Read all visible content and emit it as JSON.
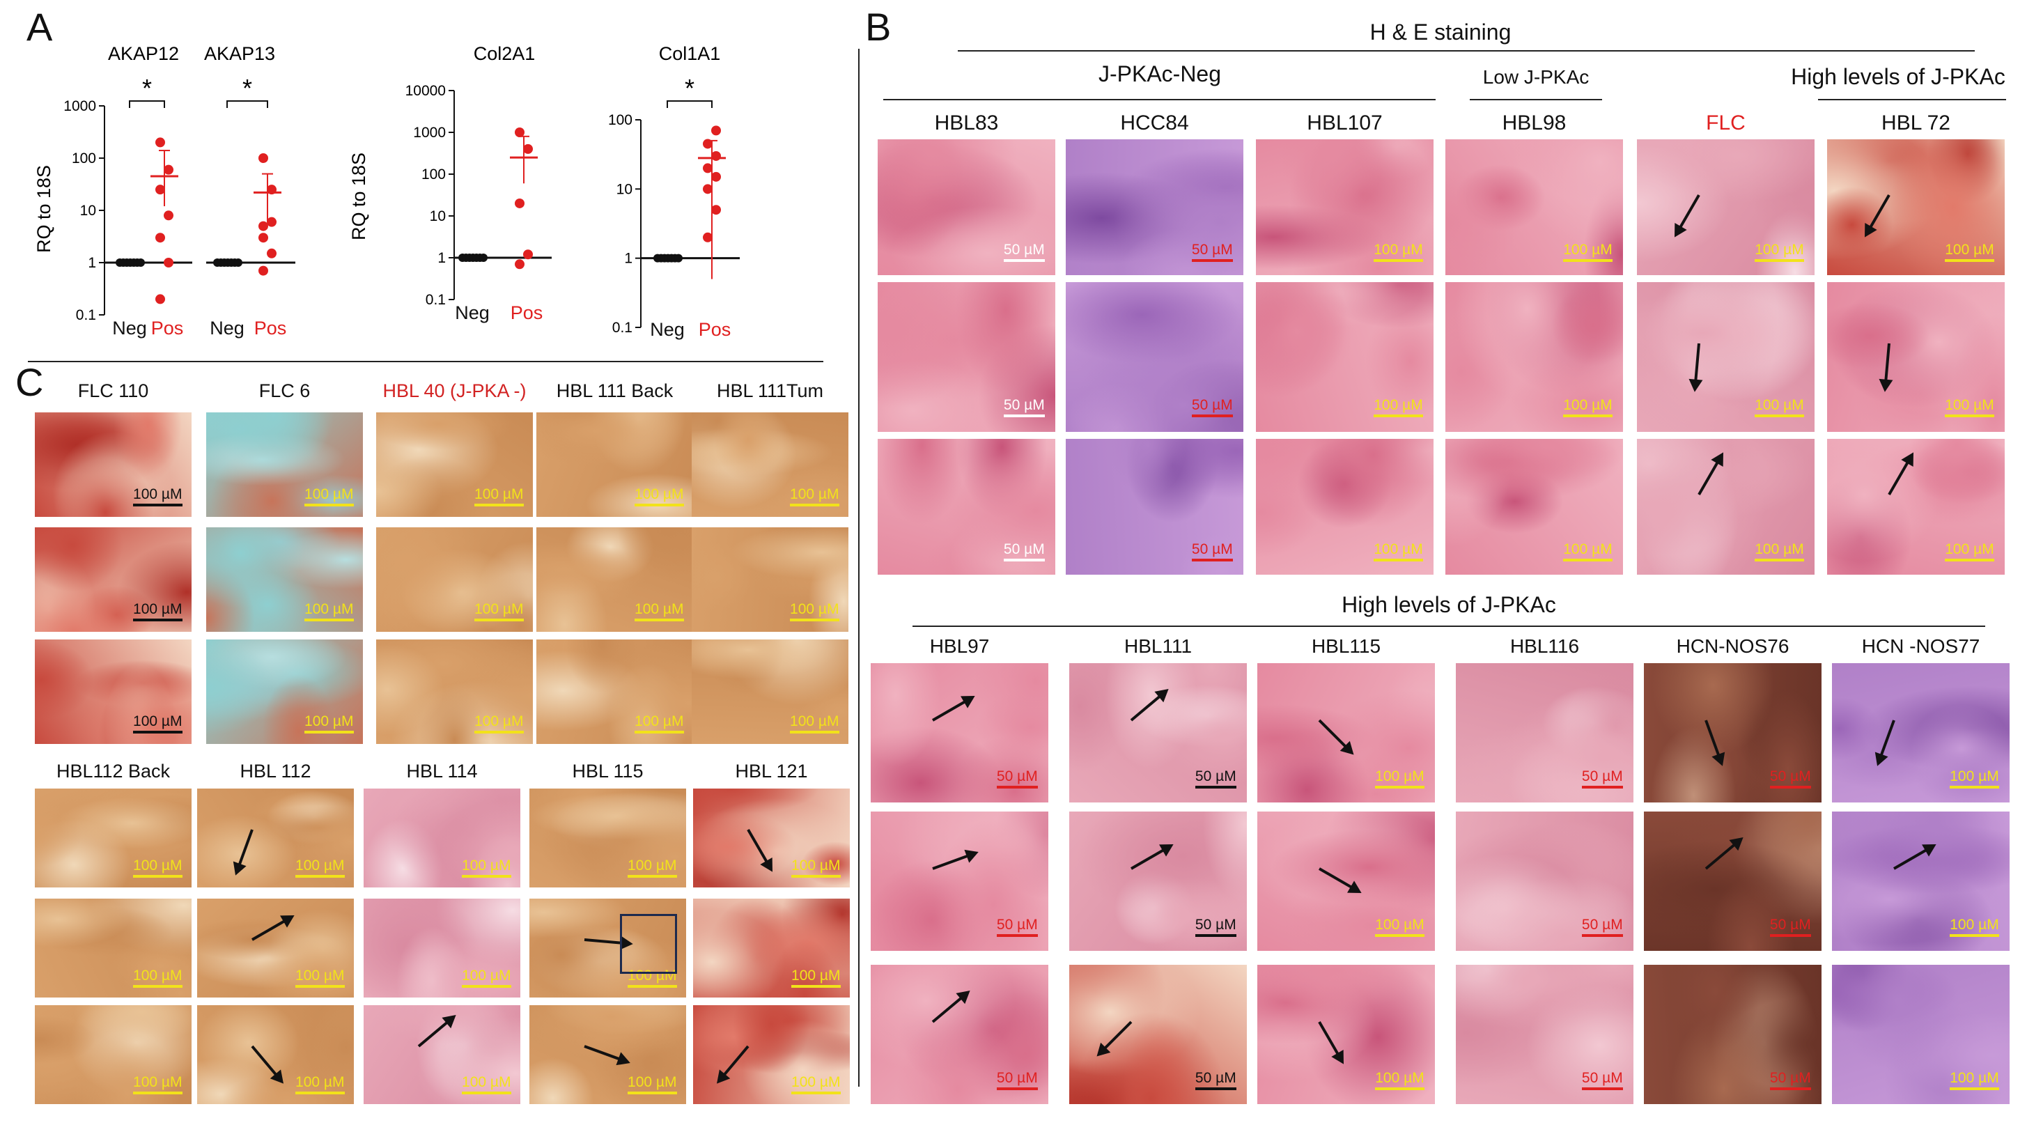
{
  "panels": {
    "a": "A",
    "b": "B",
    "c": "C"
  },
  "colors": {
    "neg": "#111111",
    "pos": "#e02020",
    "flc_title": "#e02020",
    "hbl40_title": "#d22222"
  },
  "chart_data": [
    {
      "type": "scatter",
      "title": "AKAP12",
      "ylabel": "RQ to 18S",
      "yscale": "log",
      "ylim": [
        0.1,
        1000
      ],
      "yticks": [
        "0.1",
        "1",
        "10",
        "100",
        "1000"
      ],
      "categories": [
        "Neg",
        "Pos"
      ],
      "significance": "*",
      "series": [
        {
          "name": "Neg",
          "values": [
            1,
            1,
            1,
            1,
            1,
            1,
            1
          ]
        },
        {
          "name": "Pos",
          "values": [
            0.2,
            1,
            3,
            8,
            25,
            60,
            200
          ]
        }
      ],
      "mean_sem": {
        "Neg": [
          1,
          1,
          1
        ],
        "Pos": [
          45,
          12,
          140
        ]
      }
    },
    {
      "type": "scatter",
      "title": "AKAP13",
      "ylabel": "RQ to 18S",
      "yscale": "log",
      "ylim": [
        0.1,
        1000
      ],
      "categories": [
        "Neg",
        "Pos"
      ],
      "significance": "*",
      "series": [
        {
          "name": "Neg",
          "values": [
            1,
            1,
            1,
            1,
            1,
            1,
            1
          ]
        },
        {
          "name": "Pos",
          "values": [
            0.7,
            1.5,
            3,
            6,
            5,
            25,
            100
          ]
        }
      ],
      "mean_sem": {
        "Neg": [
          1,
          1,
          1
        ],
        "Pos": [
          22,
          6,
          50
        ]
      }
    },
    {
      "type": "scatter",
      "title": "Col2A1",
      "ylabel": "RQ to 18S",
      "yscale": "log",
      "ylim": [
        0.1,
        10000
      ],
      "yticks": [
        "0.1",
        "1",
        "10",
        "100",
        "1000",
        "10000"
      ],
      "categories": [
        "Neg",
        "Pos"
      ],
      "significance": "",
      "series": [
        {
          "name": "Neg",
          "values": [
            1,
            1,
            1,
            1,
            1,
            1,
            1
          ]
        },
        {
          "name": "Pos",
          "values": [
            0.7,
            1.2,
            20,
            400,
            1000
          ]
        }
      ],
      "mean_sem": {
        "Neg": [
          1,
          1,
          1
        ],
        "Pos": [
          250,
          60,
          800
        ]
      }
    },
    {
      "type": "scatter",
      "title": "Col1A1",
      "ylabel": "",
      "yscale": "log",
      "ylim": [
        0.1,
        100
      ],
      "yticks": [
        "0.1",
        "1",
        "10",
        "100"
      ],
      "categories": [
        "Neg",
        "Pos"
      ],
      "significance": "*",
      "series": [
        {
          "name": "Neg",
          "values": [
            1,
            1,
            1,
            1,
            1,
            1,
            1
          ]
        },
        {
          "name": "Pos",
          "values": [
            2,
            5,
            10,
            15,
            20,
            30,
            45,
            70
          ]
        }
      ],
      "mean_sem": {
        "Neg": [
          1,
          1,
          1
        ],
        "Pos": [
          28,
          0.5,
          50
        ]
      }
    }
  ],
  "panel_b": {
    "title": "H & E staining",
    "groups": [
      "J-PKAc-Neg",
      "Low J-PKAc",
      "High levels of J-PKAc"
    ],
    "top_columns": [
      {
        "label": "HBL83",
        "bar": "50 µM",
        "bars": [
          "50 µM",
          "50 µM",
          "50 µM"
        ],
        "bar_color": "w"
      },
      {
        "label": "HCC84",
        "bars": [
          "50 µM",
          "50 µM",
          "50 µM"
        ],
        "bar_color": "r"
      },
      {
        "label": "HBL107",
        "bars": [
          "100 µM",
          "100 µM",
          "100 µM"
        ],
        "bar_color": "y"
      },
      {
        "label": "HBL98",
        "bars": [
          "100 µM",
          "100 µM",
          "100 µM"
        ],
        "bar_color": "y"
      },
      {
        "label": "FLC",
        "bars": [
          "100 µM",
          "100 µM",
          "100 µM"
        ],
        "bar_color": "y"
      },
      {
        "label": "HBL 72",
        "bars": [
          "100 µM",
          "100 µM",
          "100 µM"
        ],
        "bar_color": "y"
      }
    ],
    "lower_title": "High levels of J-PKAc",
    "bottom_columns": [
      {
        "label": "HBL97",
        "bars": [
          "50 µM",
          "50 µM",
          "50 µM"
        ],
        "bar_color": "r"
      },
      {
        "label": "HBL111",
        "bars": [
          "50 µM",
          "50 µM",
          "50 µM"
        ],
        "bar_color": "k"
      },
      {
        "label": "HBL115",
        "bars": [
          "100 µM",
          "100 µM",
          "100 µM"
        ],
        "bar_color": "y"
      },
      {
        "label": "HBL116",
        "bars": [
          "50 µM",
          "50 µM",
          "50 µM"
        ],
        "bar_color": "r"
      },
      {
        "label": "HCN-NOS76",
        "bars": [
          "50 µM",
          "50 µM",
          "50 µM"
        ],
        "bar_color": "r"
      },
      {
        "label": "HCN -NOS77",
        "bars": [
          "100 µM",
          "100 µM",
          "100 µM"
        ],
        "bar_color": "y"
      }
    ]
  },
  "panel_c": {
    "top_columns": [
      {
        "label": "FLC 110",
        "bars": [
          "100 µM",
          "100 µM",
          "100 µM"
        ],
        "bar_color": "k"
      },
      {
        "label": "FLC 6",
        "bars": [
          "100 µM",
          "100 µM",
          "100 µM"
        ],
        "bar_color": "y"
      },
      {
        "label": "HBL 40 (J-PKA -)",
        "bars": [
          "100 µM",
          "100 µM",
          "100 µM"
        ],
        "bar_color": "y"
      },
      {
        "label": "HBL 111 Back",
        "bars": [
          "100 µM",
          "100 µM",
          "100 µM"
        ],
        "bar_color": "y"
      },
      {
        "label": "HBL 111Tum",
        "bars": [
          "100 µM",
          "100 µM",
          "100 µM"
        ],
        "bar_color": "y"
      }
    ],
    "bottom_columns": [
      {
        "label": "HBL112 Back",
        "bars": [
          "100 µM",
          "100 µM",
          "100 µM"
        ],
        "bar_color": "y"
      },
      {
        "label": "HBL 112",
        "bars": [
          "100 µM",
          "100 µM",
          "100 µM"
        ],
        "bar_color": "y"
      },
      {
        "label": "HBL 114",
        "bars": [
          "100 µM",
          "100 µM",
          "100 µM"
        ],
        "bar_color": "y"
      },
      {
        "label": "HBL 115",
        "bars": [
          "100 µM",
          "100 µM",
          "100 µM"
        ],
        "bar_color": "y"
      },
      {
        "label": "HBL 121",
        "bars": [
          "100 µM",
          "100 µM",
          "100 µM"
        ],
        "bar_color": "y"
      }
    ]
  }
}
